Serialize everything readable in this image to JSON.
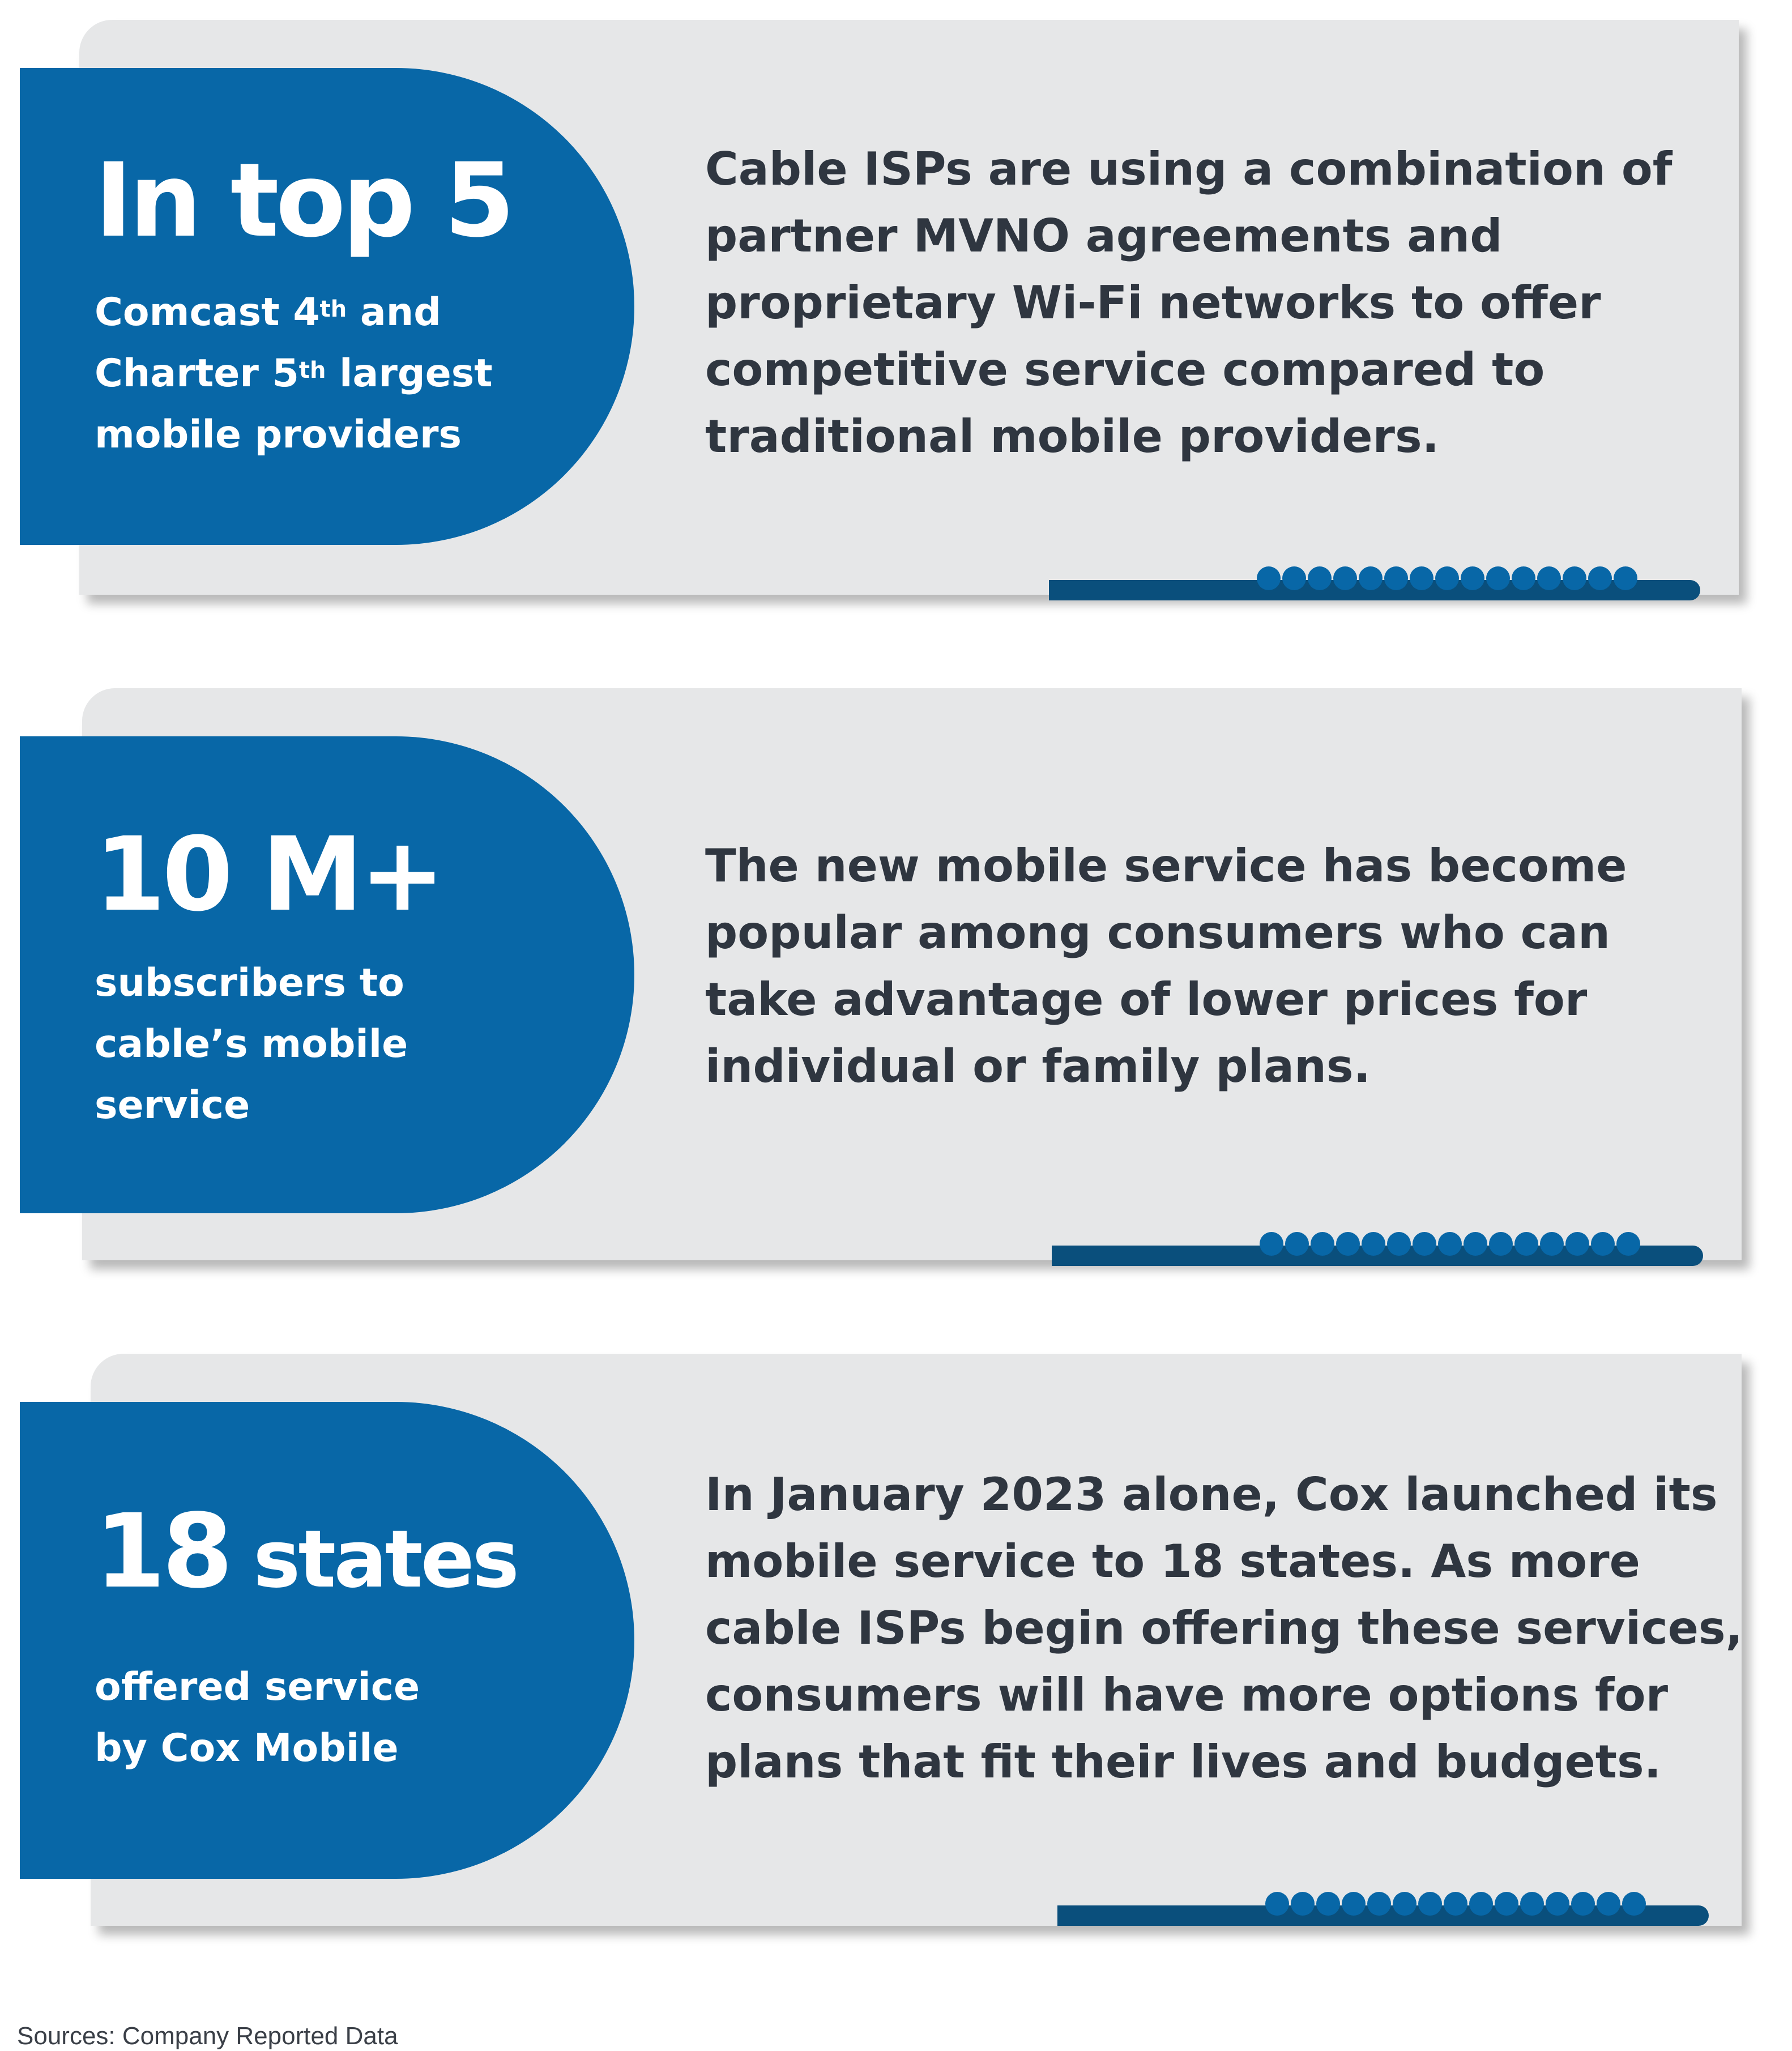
{
  "cards": [
    {
      "stat_big": "In top 5",
      "stat_sub_line1_a": "Comcast 4",
      "stat_sub_line1_sup": "th",
      "stat_sub_line1_b": " and",
      "stat_sub_line2_a": "Charter 5",
      "stat_sub_line2_sup": "th",
      "stat_sub_line2_b": " largest",
      "stat_sub_line3": "mobile providers",
      "desc_lines": [
        "Cable ISPs are using a combination of",
        "partner MVNO agreements and",
        "proprietary Wi-Fi networks to offer",
        "competitive service compared to",
        "traditional mobile providers."
      ]
    },
    {
      "stat_big": "10 M+",
      "stat_sub_lines": [
        "subscribers to",
        "cable’s mobile",
        "service"
      ],
      "desc_lines": [
        "The new mobile service has become",
        "popular among consumers who can",
        "take advantage of lower prices for",
        "individual or family plans."
      ]
    },
    {
      "stat_big_num": "18",
      "stat_big_word": "states",
      "stat_sub_lines": [
        "offered service",
        "by Cox Mobile"
      ],
      "desc_lines": [
        "In January 2023 alone, Cox launched its",
        "mobile service to 18 states. As more",
        "cable ISPs begin offering these services,",
        "consumers will have more options for",
        "plans that fit their lives and budgets."
      ]
    }
  ],
  "source": "Sources: Company Reported Data",
  "colors": {
    "stat_blue": "#0867a7",
    "card_gray": "#e6e7e8",
    "accent_dark_blue": "#0a4f7c",
    "text_dark": "#2f3640"
  }
}
